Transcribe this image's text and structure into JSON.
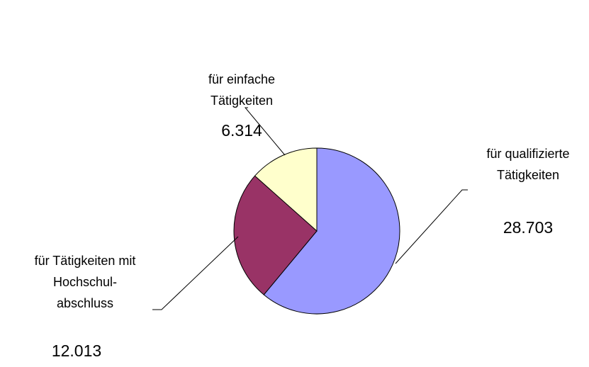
{
  "chart_data": {
    "type": "pie",
    "categories": [
      "für qualifizierte\nTätigkeiten",
      "für Tätigkeiten mit\nHochschul-\nabschluss",
      "für einfache\nTätigkeiten"
    ],
    "values": [
      28703,
      12013,
      6314
    ],
    "value_labels": [
      "28.703",
      "12.013",
      "6.314"
    ],
    "colors": [
      "#9999ff",
      "#993366",
      "#ffffcc"
    ]
  }
}
